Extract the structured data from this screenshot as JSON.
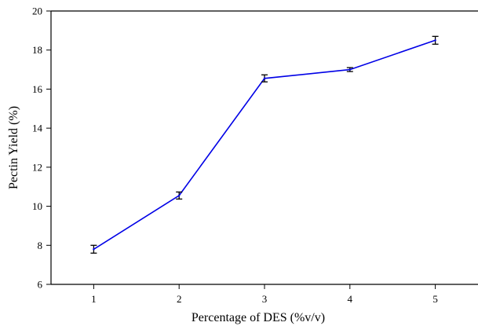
{
  "chart_data": {
    "type": "line",
    "title": "",
    "xlabel": "Percentage of DES (%v/v)",
    "ylabel": "Pectin Yield (%)",
    "xlim": [
      0.5,
      5.5
    ],
    "ylim": [
      6,
      20
    ],
    "x_ticks": [
      "1",
      "2",
      "3",
      "4",
      "5"
    ],
    "y_ticks": [
      "6",
      "8",
      "10",
      "12",
      "14",
      "16",
      "18",
      "20"
    ],
    "grid": false,
    "legend": "none",
    "series": [
      {
        "color": "#0000e6",
        "x": [
          1,
          2,
          3,
          4,
          5
        ],
        "values": [
          7.8,
          10.55,
          16.55,
          17.0,
          18.5
        ],
        "errors": [
          0.2,
          0.18,
          0.18,
          0.1,
          0.2
        ]
      }
    ]
  }
}
